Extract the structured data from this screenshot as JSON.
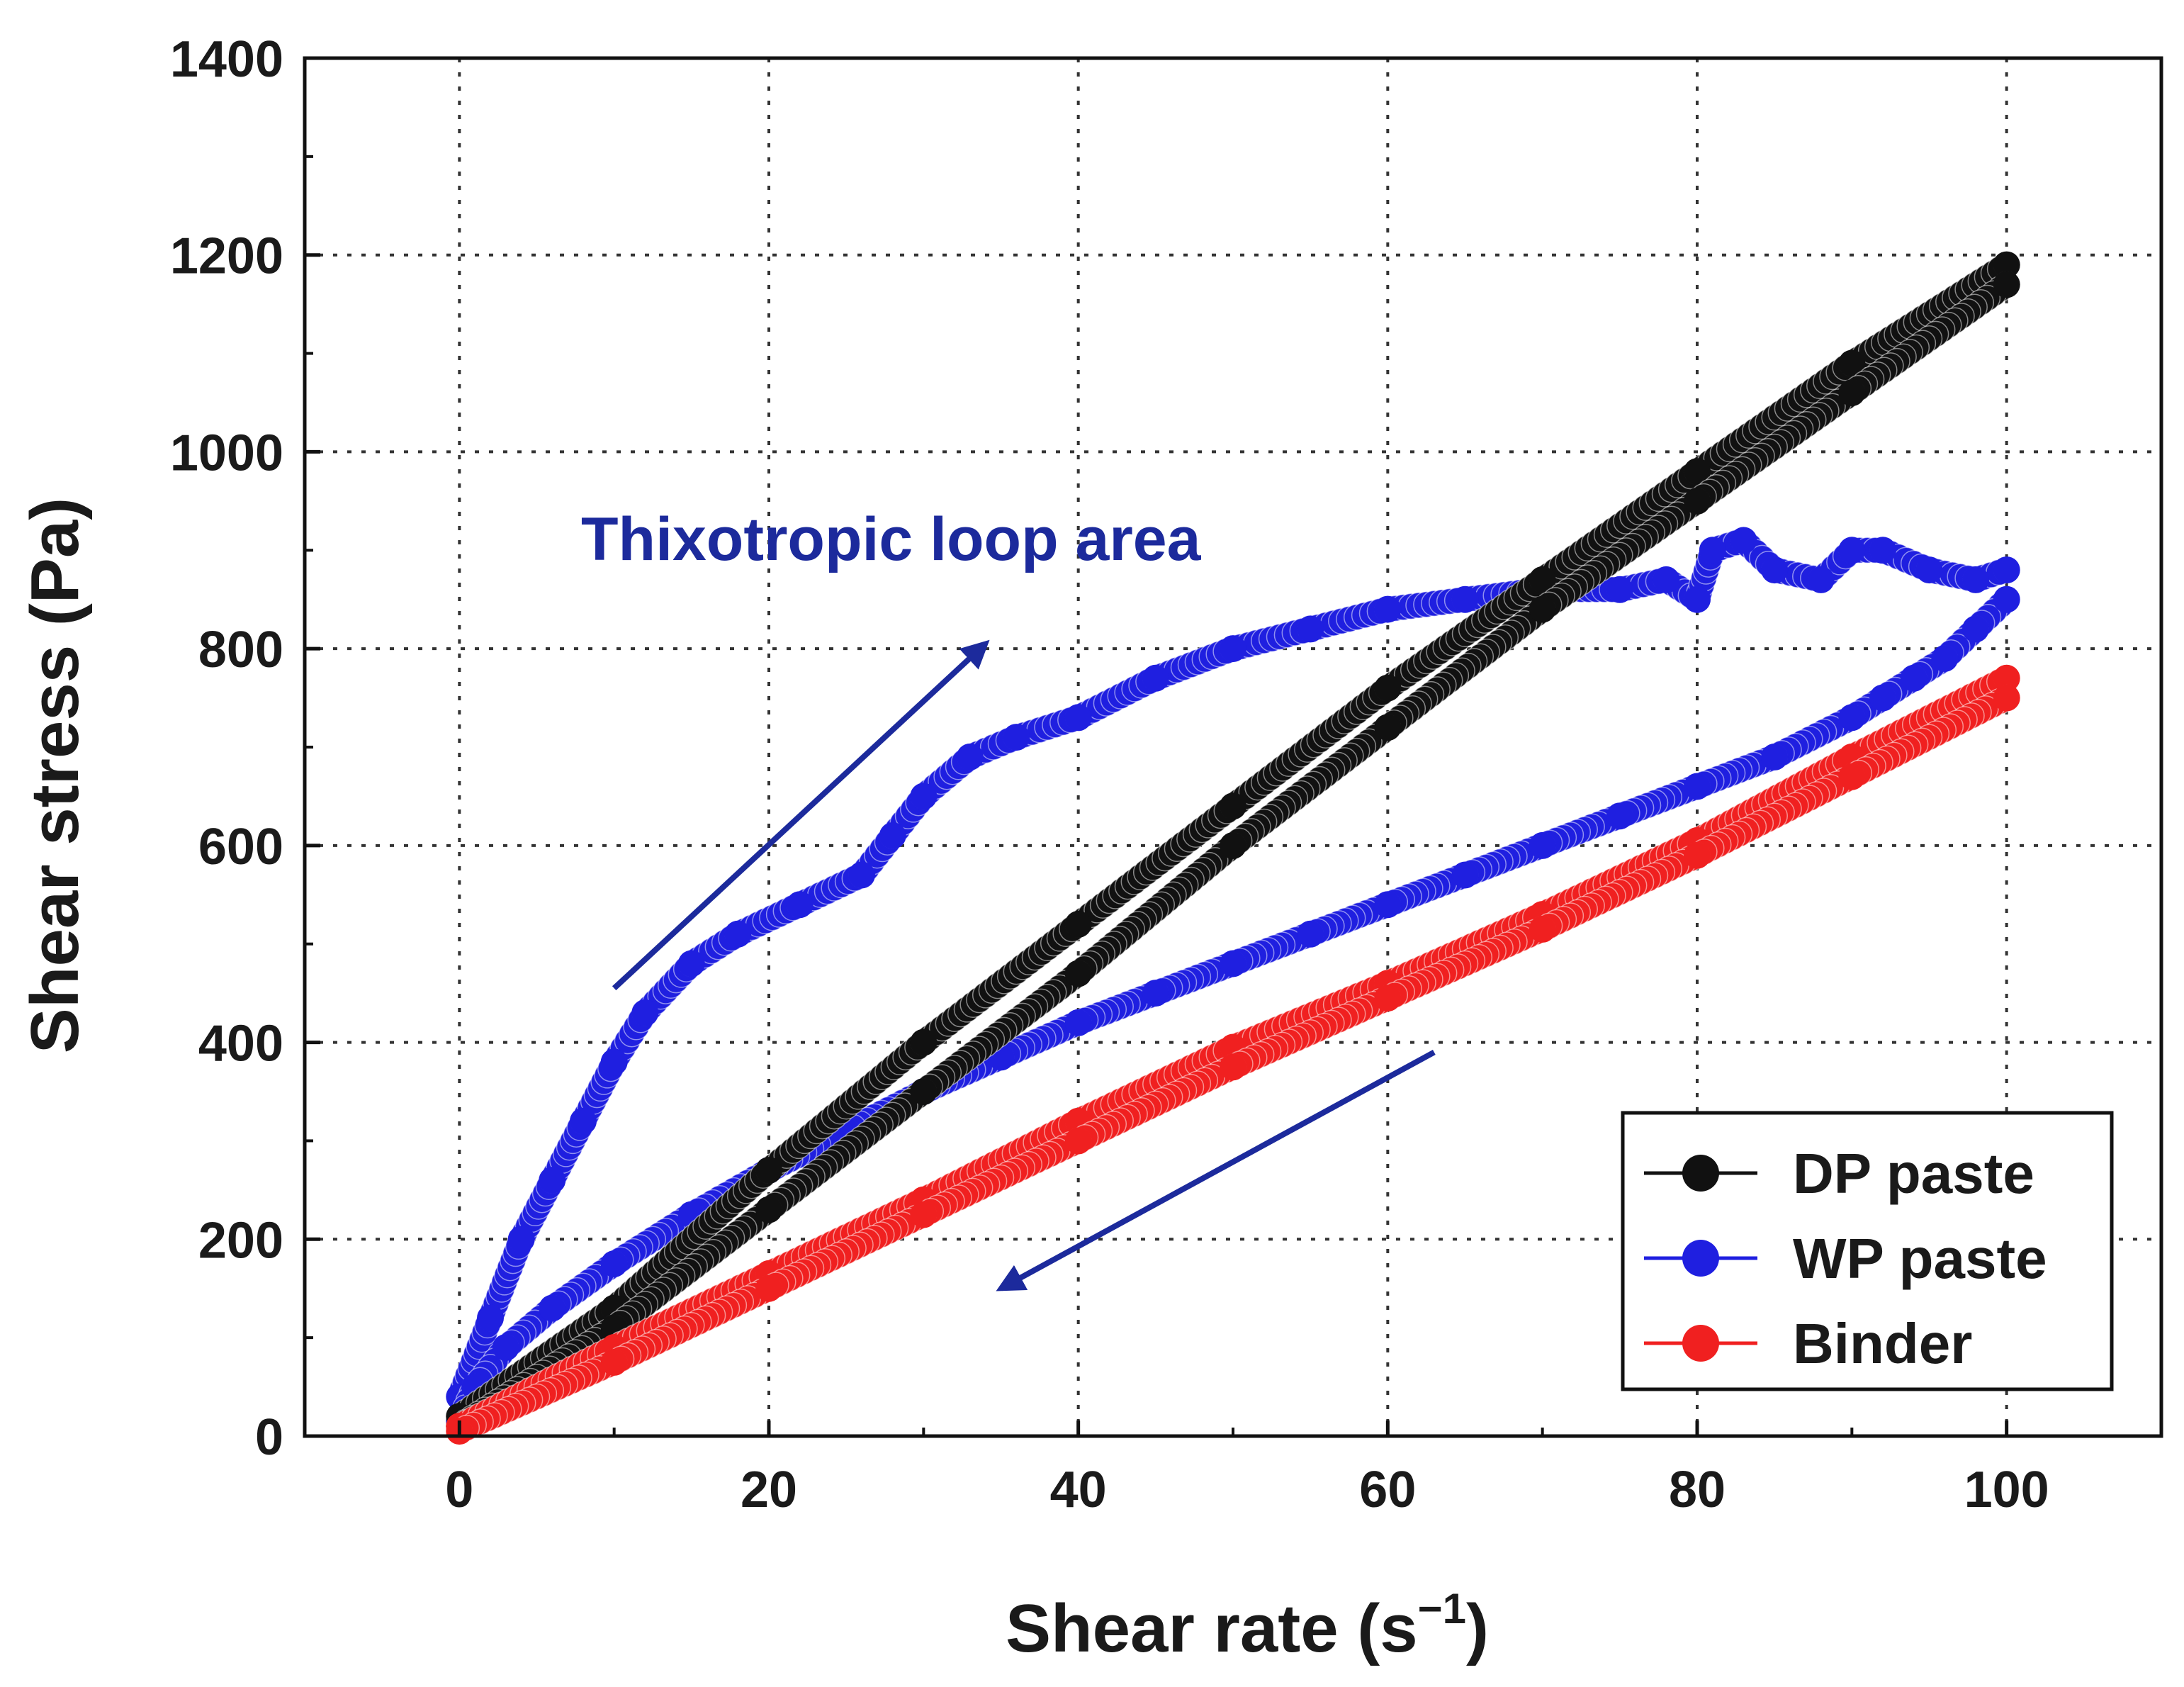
{
  "chart_data": {
    "type": "scatter",
    "xlabel": "Shear rate (s",
    "xlabel_superscript": "−1",
    "xlabel_close": ")",
    "ylabel": "Shear stress (Pa)",
    "xlim": [
      -10,
      110
    ],
    "ylim": [
      0,
      1400
    ],
    "xticks": [
      "0",
      "20",
      "40",
      "60",
      "80",
      "100"
    ],
    "yticks": [
      "0",
      "200",
      "400",
      "600",
      "800",
      "1000",
      "1200",
      "1400"
    ],
    "grid": true,
    "legend_position": "bottom-right",
    "annotation": {
      "text": "Thixotropic loop area",
      "color": "#1c2a9c"
    },
    "arrows": [
      {
        "from": [
          10,
          455
        ],
        "to": [
          34,
          805
        ],
        "color": "#1c2a9c"
      },
      {
        "from": [
          63,
          390
        ],
        "to": [
          35,
          150
        ],
        "color": "#1c2a9c"
      }
    ],
    "series": [
      {
        "name": "DP paste",
        "color": "#111111",
        "up": {
          "x": [
            0,
            10,
            20,
            30,
            40,
            50,
            60,
            70,
            80,
            90,
            100
          ],
          "y": [
            20,
            130,
            270,
            400,
            520,
            640,
            760,
            870,
            980,
            1090,
            1190
          ]
        },
        "down": {
          "x": [
            100,
            90,
            80,
            70,
            60,
            50,
            40,
            30,
            20,
            10,
            0
          ],
          "y": [
            1170,
            1060,
            950,
            840,
            720,
            600,
            470,
            350,
            230,
            110,
            10
          ]
        }
      },
      {
        "name": "WP paste",
        "color": "#1f1fe0",
        "up": {
          "x": [
            0,
            2,
            4,
            6,
            8,
            10,
            12,
            15,
            18,
            22,
            26,
            28,
            30,
            33,
            36,
            40,
            45,
            50,
            55,
            60,
            65,
            70,
            75,
            78,
            80,
            81,
            83,
            85,
            88,
            90,
            92,
            95,
            98,
            100
          ],
          "y": [
            40,
            120,
            200,
            260,
            320,
            380,
            430,
            480,
            510,
            540,
            570,
            610,
            650,
            690,
            710,
            730,
            770,
            800,
            820,
            840,
            850,
            860,
            860,
            870,
            850,
            900,
            910,
            880,
            870,
            900,
            900,
            880,
            870,
            880
          ]
        },
        "down": {
          "x": [
            100,
            98,
            96,
            94,
            92,
            90,
            85,
            80,
            75,
            70,
            65,
            60,
            55,
            50,
            45,
            40,
            35,
            30,
            25,
            20,
            15,
            10,
            6,
            3,
            1,
            0
          ],
          "y": [
            850,
            820,
            790,
            770,
            750,
            730,
            690,
            660,
            630,
            600,
            570,
            540,
            510,
            480,
            450,
            420,
            385,
            350,
            310,
            270,
            225,
            175,
            130,
            90,
            50,
            15
          ]
        }
      },
      {
        "name": "Binder",
        "color": "#f02020",
        "up": {
          "x": [
            0,
            10,
            20,
            30,
            40,
            50,
            60,
            70,
            80,
            90,
            100
          ],
          "y": [
            10,
            90,
            165,
            240,
            320,
            395,
            460,
            530,
            605,
            690,
            770
          ]
        },
        "down": {
          "x": [
            100,
            90,
            80,
            70,
            60,
            50,
            40,
            30,
            20,
            10,
            0
          ],
          "y": [
            750,
            670,
            590,
            515,
            445,
            375,
            300,
            225,
            150,
            75,
            5
          ]
        }
      }
    ]
  }
}
